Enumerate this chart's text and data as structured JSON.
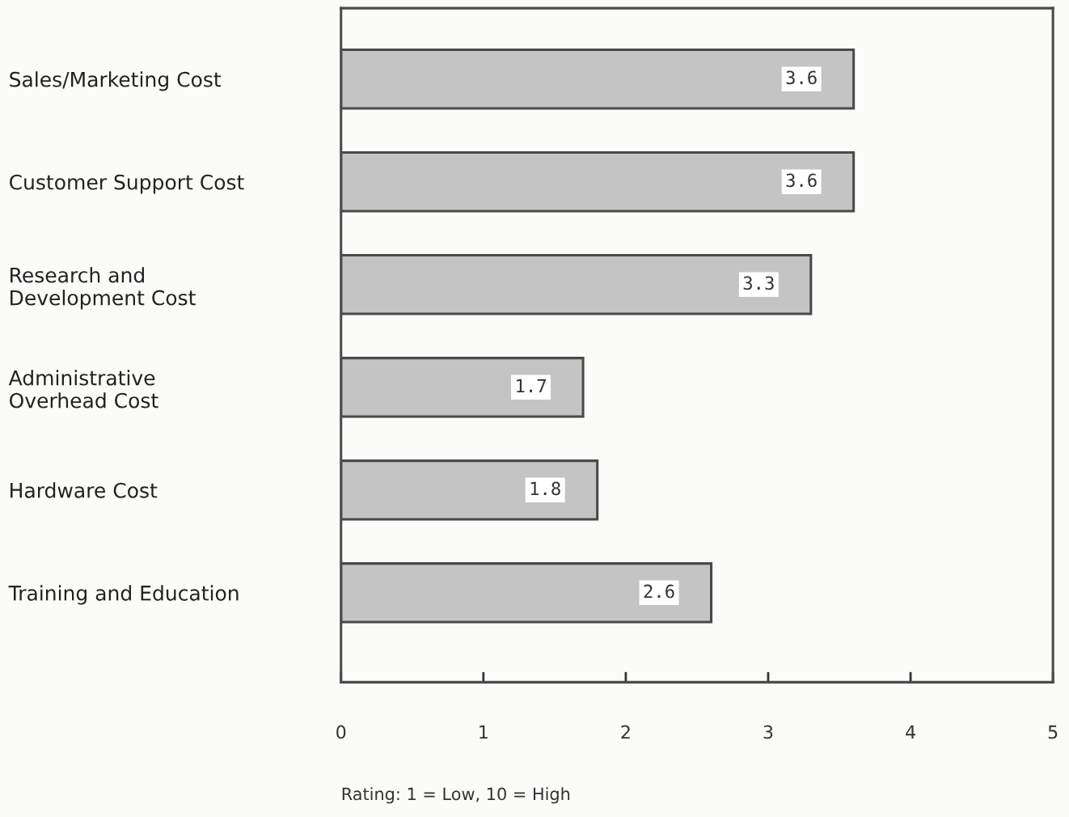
{
  "chart_data": {
    "type": "bar",
    "orientation": "horizontal",
    "categories": [
      "Sales/Marketing Cost",
      "Customer Support Cost",
      "Research and\nDevelopment Cost",
      "Administrative\nOverhead Cost",
      "Hardware Cost",
      "Training and Education"
    ],
    "values": [
      3.6,
      3.6,
      3.3,
      1.7,
      1.8,
      2.6
    ],
    "color": "#c4c4c4",
    "xlabel": "Rating: 1 = Low, 10 = High",
    "xlim": [
      0,
      5
    ],
    "xticks": [
      0,
      1,
      2,
      3,
      4,
      5
    ],
    "data_labels": true,
    "grid": false,
    "legend": false
  }
}
